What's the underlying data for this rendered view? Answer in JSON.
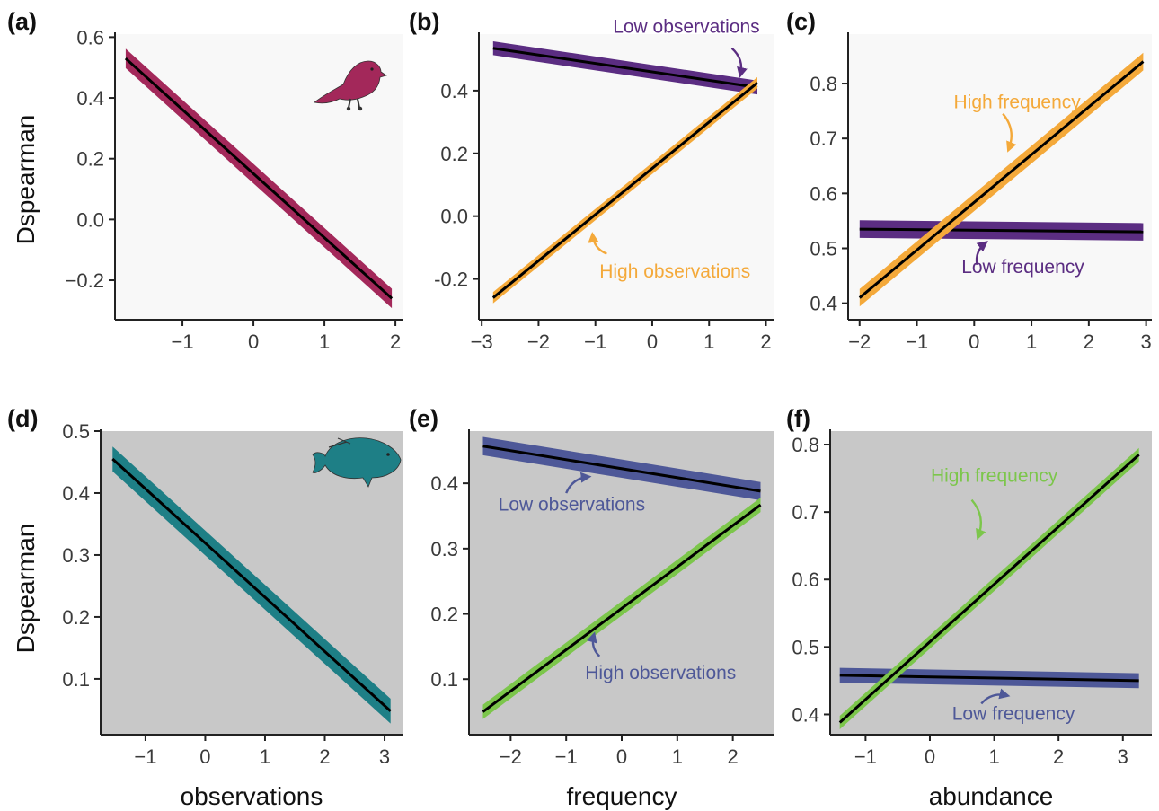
{
  "figure": {
    "shared_ylabel": "Dspearman",
    "colors": {
      "bird_panel_bg": "#f8f8f8",
      "fish_panel_bg": "#c8c8c8",
      "fit_line": "#000000",
      "bird_main": "#a3285a",
      "bird_low": "#5b2d82",
      "bird_high": "#f4a93a",
      "fish_main": "#1e7f86",
      "fish_low": "#4e5898",
      "fish_high": "#7cc64b"
    }
  },
  "chart_data": [
    {
      "id": "a",
      "panel_label": "(a)",
      "type": "line",
      "theme": "bird",
      "xlabel": "",
      "ylabel": "Dspearman",
      "xlim": [
        -1.95,
        2.1
      ],
      "ylim": [
        -0.33,
        0.61
      ],
      "xticks": [
        -1,
        0,
        1,
        2
      ],
      "xtick_labels": [
        "−1",
        "0",
        "1",
        "2"
      ],
      "yticks": [
        -0.2,
        0.0,
        0.2,
        0.4,
        0.6
      ],
      "ytick_labels": [
        "−0.2",
        "0.0",
        "0.2",
        "0.4",
        "0.6"
      ],
      "icon": "bird-icon",
      "series": [
        {
          "key": "bird_main",
          "x": [
            -1.8,
            1.95
          ],
          "y": [
            0.53,
            -0.26
          ],
          "band": 0.032
        }
      ],
      "annotations": []
    },
    {
      "id": "b",
      "panel_label": "(b)",
      "type": "line",
      "theme": "bird",
      "xlabel": "",
      "ylabel": "",
      "xlim": [
        -3.05,
        2.15
      ],
      "ylim": [
        -0.33,
        0.58
      ],
      "xticks": [
        -3,
        -2,
        -1,
        0,
        1,
        2
      ],
      "xtick_labels": [
        "−3",
        "−2",
        "−1",
        "0",
        "1",
        "2"
      ],
      "yticks": [
        -0.2,
        0.0,
        0.2,
        0.4
      ],
      "ytick_labels": [
        "-0.2",
        "0.0",
        "0.2",
        "0.4"
      ],
      "series": [
        {
          "name": "Low observations",
          "key": "bird_low",
          "x": [
            -2.8,
            1.85
          ],
          "y": [
            0.535,
            0.41
          ],
          "band": 0.022
        },
        {
          "name": "High observations",
          "key": "bird_high",
          "x": [
            -2.8,
            1.85
          ],
          "y": [
            -0.26,
            0.425
          ],
          "band": 0.018
        }
      ],
      "annotations": [
        {
          "text": "Low observations",
          "key": "bird_low",
          "tx": 0.6,
          "ty": 0.585,
          "from": [
            1.4,
            0.535
          ],
          "to": [
            1.55,
            0.45
          ]
        },
        {
          "text": "High observations",
          "key": "bird_high",
          "tx": 0.4,
          "ty": -0.195,
          "from": [
            -0.8,
            -0.12
          ],
          "to": [
            -1.05,
            -0.06
          ]
        }
      ]
    },
    {
      "id": "c",
      "panel_label": "(c)",
      "type": "line",
      "theme": "bird",
      "xlabel": "",
      "ylabel": "",
      "xlim": [
        -2.2,
        3.1
      ],
      "ylim": [
        0.37,
        0.89
      ],
      "xticks": [
        -2,
        -1,
        0,
        1,
        2,
        3
      ],
      "xtick_labels": [
        "−2",
        "−1",
        "0",
        "1",
        "2",
        "3"
      ],
      "yticks": [
        0.4,
        0.5,
        0.6,
        0.7,
        0.8
      ],
      "ytick_labels": [
        "0.4",
        "0.5",
        "0.6",
        "0.7",
        "0.8"
      ],
      "series": [
        {
          "name": "Low frequency",
          "key": "bird_low",
          "x": [
            -2.0,
            2.95
          ],
          "y": [
            0.535,
            0.53
          ],
          "band": 0.016
        },
        {
          "name": "High frequency",
          "key": "bird_high",
          "x": [
            -2.0,
            2.95
          ],
          "y": [
            0.41,
            0.84
          ],
          "band": 0.016
        }
      ],
      "annotations": [
        {
          "text": "High frequency",
          "key": "bird_high",
          "tx": 0.75,
          "ty": 0.755,
          "from": [
            0.5,
            0.745
          ],
          "to": [
            0.6,
            0.68
          ]
        },
        {
          "text": "Low frequency",
          "key": "bird_low",
          "tx": 0.85,
          "ty": 0.455,
          "from": [
            0.05,
            0.47
          ],
          "to": [
            0.2,
            0.51
          ]
        }
      ]
    },
    {
      "id": "d",
      "panel_label": "(d)",
      "type": "line",
      "theme": "fish",
      "xlabel": "observations",
      "ylabel": "Dspearman",
      "xlim": [
        -1.75,
        3.3
      ],
      "ylim": [
        0.01,
        0.5
      ],
      "xticks": [
        -1,
        0,
        1,
        2,
        3
      ],
      "xtick_labels": [
        "−1",
        "0",
        "1",
        "2",
        "3"
      ],
      "yticks": [
        0.1,
        0.2,
        0.3,
        0.4,
        0.5
      ],
      "ytick_labels": [
        "0.1",
        "0.2",
        "0.3",
        "0.4",
        "0.5"
      ],
      "icon": "fish-icon",
      "series": [
        {
          "key": "fish_main",
          "x": [
            -1.55,
            3.1
          ],
          "y": [
            0.455,
            0.048
          ],
          "band": 0.02
        }
      ],
      "annotations": []
    },
    {
      "id": "e",
      "panel_label": "(e)",
      "type": "line",
      "theme": "fish",
      "xlabel": "frequency",
      "ylabel": "",
      "xlim": [
        -2.75,
        2.75
      ],
      "ylim": [
        0.015,
        0.48
      ],
      "xticks": [
        -2,
        -1,
        0,
        1,
        2
      ],
      "xtick_labels": [
        "−2",
        "−1",
        "0",
        "1",
        "2"
      ],
      "yticks": [
        0.1,
        0.2,
        0.3,
        0.4
      ],
      "ytick_labels": [
        "0.1",
        "0.2",
        "0.3",
        "0.4"
      ],
      "series": [
        {
          "name": "Low observations",
          "key": "fish_low",
          "x": [
            -2.5,
            2.5
          ],
          "y": [
            0.457,
            0.388
          ],
          "band": 0.014
        },
        {
          "name": "High observations",
          "key": "fish_high",
          "x": [
            -2.5,
            2.5
          ],
          "y": [
            0.05,
            0.367
          ],
          "band": 0.011
        }
      ],
      "annotations": [
        {
          "text": "Low observations",
          "key": "fish_low",
          "tx": -0.9,
          "ty": 0.358,
          "from": [
            -1.0,
            0.385
          ],
          "to": [
            -0.6,
            0.41
          ]
        },
        {
          "text": "High observations",
          "key": "fish_low",
          "tx": 0.7,
          "ty": 0.1,
          "from": [
            -0.4,
            0.135
          ],
          "to": [
            -0.5,
            0.168
          ]
        }
      ]
    },
    {
      "id": "f",
      "panel_label": "(f)",
      "type": "line",
      "theme": "fish",
      "xlabel": "abundance",
      "ylabel": "",
      "xlim": [
        -1.55,
        3.45
      ],
      "ylim": [
        0.37,
        0.82
      ],
      "xticks": [
        -1,
        0,
        1,
        2,
        3
      ],
      "xtick_labels": [
        "−1",
        "0",
        "1",
        "2",
        "3"
      ],
      "yticks": [
        0.4,
        0.5,
        0.6,
        0.7,
        0.8
      ],
      "ytick_labels": [
        "0.4",
        "0.5",
        "0.6",
        "0.7",
        "0.8"
      ],
      "series": [
        {
          "name": "Low frequency",
          "key": "fish_low",
          "x": [
            -1.4,
            3.25
          ],
          "y": [
            0.458,
            0.45
          ],
          "band": 0.011
        },
        {
          "name": "High frequency",
          "key": "fish_high",
          "x": [
            -1.4,
            3.25
          ],
          "y": [
            0.388,
            0.785
          ],
          "band": 0.01
        }
      ],
      "annotations": [
        {
          "text": "High frequency",
          "key": "fish_high",
          "tx": 1.0,
          "ty": 0.745,
          "from": [
            0.65,
            0.718
          ],
          "to": [
            0.75,
            0.663
          ]
        },
        {
          "text": "Low frequency",
          "key": "fish_low",
          "tx": 1.3,
          "ty": 0.392,
          "from": [
            0.8,
            0.416
          ],
          "to": [
            1.2,
            0.428
          ]
        }
      ]
    }
  ]
}
